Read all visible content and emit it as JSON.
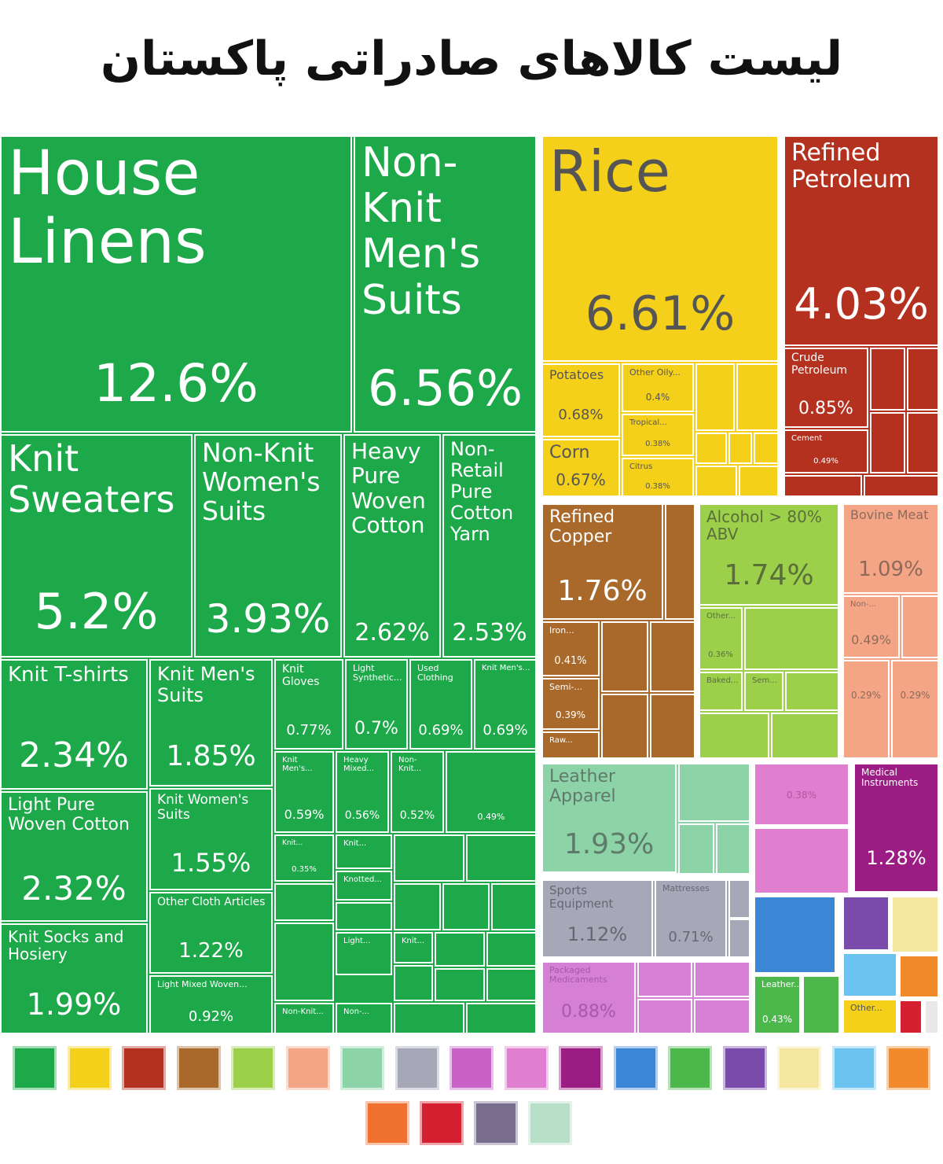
{
  "chart_data": {
    "type": "treemap",
    "title": "لیست کالاهای صادراتی پاکستان",
    "tiles": [
      {
        "name": "House Linens",
        "value": 12.6,
        "value_label": "12.6%",
        "color": "#1da84a"
      },
      {
        "name": "Non-Knit Men's Suits",
        "value": 6.56,
        "value_label": "6.56%",
        "color": "#1da84a"
      },
      {
        "name": "Knit Sweaters",
        "value": 5.2,
        "value_label": "5.2%",
        "color": "#1da84a"
      },
      {
        "name": "Non-Knit Women's Suits",
        "value": 3.93,
        "value_label": "3.93%",
        "color": "#1da84a"
      },
      {
        "name": "Heavy Pure Woven Cotton",
        "value": 2.62,
        "value_label": "2.62%",
        "color": "#1da84a"
      },
      {
        "name": "Non-Retail Pure Cotton Yarn",
        "value": 2.53,
        "value_label": "2.53%",
        "color": "#1da84a"
      },
      {
        "name": "Knit T-shirts",
        "value": 2.34,
        "value_label": "2.34%",
        "color": "#1da84a"
      },
      {
        "name": "Light Pure Woven Cotton",
        "value": 2.32,
        "value_label": "2.32%",
        "color": "#1da84a"
      },
      {
        "name": "Knit Socks and Hosiery",
        "value": 1.99,
        "value_label": "1.99%",
        "color": "#1da84a"
      },
      {
        "name": "Knit Men's Suits",
        "value": 1.85,
        "value_label": "1.85%",
        "color": "#1da84a"
      },
      {
        "name": "Knit Women's Suits",
        "value": 1.55,
        "value_label": "1.55%",
        "color": "#1da84a"
      },
      {
        "name": "Other Cloth Articles",
        "value": 1.22,
        "value_label": "1.22%",
        "color": "#1da84a"
      },
      {
        "name": "Light Mixed Woven...",
        "value": 0.92,
        "value_label": "0.92%",
        "color": "#1da84a"
      },
      {
        "name": "Knit Gloves",
        "value": 0.77,
        "value_label": "0.77%",
        "color": "#1da84a"
      },
      {
        "name": "Light Synthetic...",
        "value": 0.7,
        "value_label": "0.7%",
        "color": "#1da84a"
      },
      {
        "name": "Used Clothing",
        "value": 0.69,
        "value_label": "0.69%",
        "color": "#1da84a"
      },
      {
        "name": "Knit Men's...",
        "value": 0.69,
        "value_label": "0.69%",
        "color": "#1da84a"
      },
      {
        "name": "Knit Men's...",
        "value": 0.59,
        "value_label": "0.59%",
        "color": "#1da84a"
      },
      {
        "name": "Heavy Mixed...",
        "value": 0.56,
        "value_label": "0.56%",
        "color": "#1da84a"
      },
      {
        "name": "Non-Knit...",
        "value": 0.52,
        "value_label": "0.52%",
        "color": "#1da84a"
      },
      {
        "name": null,
        "value": 0.49,
        "value_label": "0.49%",
        "color": "#1da84a"
      },
      {
        "name": "Knit...",
        "value": 0.35,
        "value_label": "0.35%",
        "color": "#1da84a"
      },
      {
        "name": "Knit...",
        "value": null,
        "color": "#1da84a"
      },
      {
        "name": "Knotted...",
        "value": null,
        "color": "#1da84a"
      },
      {
        "name": "Light...",
        "value": null,
        "color": "#1da84a"
      },
      {
        "name": "Knit...",
        "value": null,
        "color": "#1da84a"
      },
      {
        "name": "Non-Knit...",
        "value": null,
        "color": "#1da84a"
      },
      {
        "name": "Non-...",
        "value": null,
        "color": "#1da84a"
      },
      {
        "name": "Rice",
        "value": 6.61,
        "value_label": "6.61%",
        "color": "#f5d01a"
      },
      {
        "name": "Potatoes",
        "value": 0.68,
        "value_label": "0.68%",
        "color": "#f5d01a"
      },
      {
        "name": "Other Oily...",
        "value": 0.4,
        "value_label": "0.4%",
        "color": "#f5d01a"
      },
      {
        "name": "Tropical...",
        "value": 0.38,
        "value_label": "0.38%",
        "color": "#f5d01a"
      },
      {
        "name": "Corn",
        "value": 0.67,
        "value_label": "0.67%",
        "color": "#f5d01a"
      },
      {
        "name": "Citrus",
        "value": 0.38,
        "value_label": "0.38%",
        "color": "#f5d01a"
      },
      {
        "name": "Refined Petroleum",
        "value": 4.03,
        "value_label": "4.03%",
        "color": "#b5311f"
      },
      {
        "name": "Crude Petroleum",
        "value": 0.85,
        "value_label": "0.85%",
        "color": "#b5311f"
      },
      {
        "name": "Cement",
        "value": 0.49,
        "value_label": "0.49%",
        "color": "#b5311f"
      },
      {
        "name": "Refined Copper",
        "value": 1.76,
        "value_label": "1.76%",
        "color": "#a8692a"
      },
      {
        "name": "Iron...",
        "value": 0.41,
        "value_label": "0.41%",
        "color": "#a8692a"
      },
      {
        "name": "Semi-...",
        "value": 0.39,
        "value_label": "0.39%",
        "color": "#a8692a"
      },
      {
        "name": "Raw...",
        "value": null,
        "color": "#a8692a"
      },
      {
        "name": "Alcohol > 80% ABV",
        "value": 1.74,
        "value_label": "1.74%",
        "color": "#9cd04a"
      },
      {
        "name": "Other...",
        "value": 0.36,
        "value_label": "0.36%",
        "color": "#9cd04a"
      },
      {
        "name": "Baked...",
        "value": null,
        "color": "#9cd04a"
      },
      {
        "name": "Sem...",
        "value": null,
        "color": "#9cd04a"
      },
      {
        "name": "Bovine Meat",
        "value": 1.09,
        "value_label": "1.09%",
        "color": "#f4a585"
      },
      {
        "name": "Non-...",
        "value": 0.49,
        "value_label": "0.49%",
        "color": "#f4a585"
      },
      {
        "name": null,
        "value": 0.29,
        "value_label": "0.29%",
        "color": "#f4a585"
      },
      {
        "name": null,
        "value": 0.29,
        "value_label": "0.29%",
        "color": "#f4a585"
      },
      {
        "name": "Leather Apparel",
        "value": 1.93,
        "value_label": "1.93%",
        "color": "#8dd3a8"
      },
      {
        "name": "Sports Equipment",
        "value": 1.12,
        "value_label": "1.12%",
        "color": "#a6a8b8"
      },
      {
        "name": "Mattresses",
        "value": 0.71,
        "value_label": "0.71%",
        "color": "#a6a8b8"
      },
      {
        "name": "Packaged Medicaments",
        "value": 0.88,
        "value_label": "0.88%",
        "color": "#d57fd5"
      },
      {
        "name": null,
        "value": 0.38,
        "value_label": "0.38%",
        "color": "#e07fcf"
      },
      {
        "name": "Medical Instruments",
        "value": 1.28,
        "value_label": "1.28%",
        "color": "#9b1d84"
      },
      {
        "name": "Leather...",
        "value": 0.43,
        "value_label": "0.43%",
        "color": "#4cb84c"
      },
      {
        "name": "Other...",
        "value": null,
        "color": "#f5d01a"
      }
    ]
  }
}
